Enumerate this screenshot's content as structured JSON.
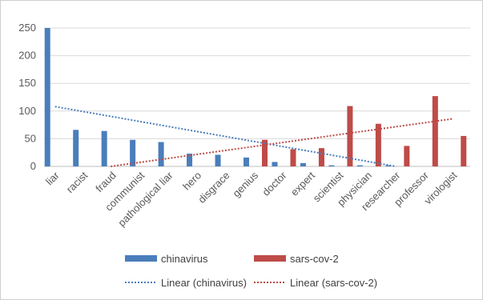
{
  "chart_data": {
    "type": "bar",
    "categories": [
      "liar",
      "racist",
      "fraud",
      "communist",
      "pathological liar",
      "hero",
      "disgrace",
      "genius",
      "doctor",
      "expert",
      "scientist",
      "physician",
      "researcher",
      "professor",
      "virologist"
    ],
    "series": [
      {
        "name": "chinavirus",
        "color": "#4a7ebb",
        "values": [
          250,
          66,
          64,
          48,
          44,
          23,
          21,
          16,
          8,
          6,
          2,
          2,
          2,
          0,
          0
        ]
      },
      {
        "name": "sars-cov-2",
        "color": "#be4b48",
        "values": [
          0,
          0,
          0,
          0,
          0,
          0,
          0,
          48,
          31,
          33,
          109,
          77,
          37,
          127,
          55
        ]
      }
    ],
    "trendlines": [
      {
        "name": "Linear (chinavirus)",
        "color": "#4a7ebb",
        "start": 108,
        "end": -18
      },
      {
        "name": "Linear (sars-cov-2)",
        "color": "#be4b48",
        "start": -14,
        "end": 86
      }
    ],
    "yticks": [
      0,
      50,
      100,
      150,
      200,
      250
    ],
    "ylim": [
      0,
      250
    ],
    "grid": true,
    "legend_position": "bottom"
  }
}
